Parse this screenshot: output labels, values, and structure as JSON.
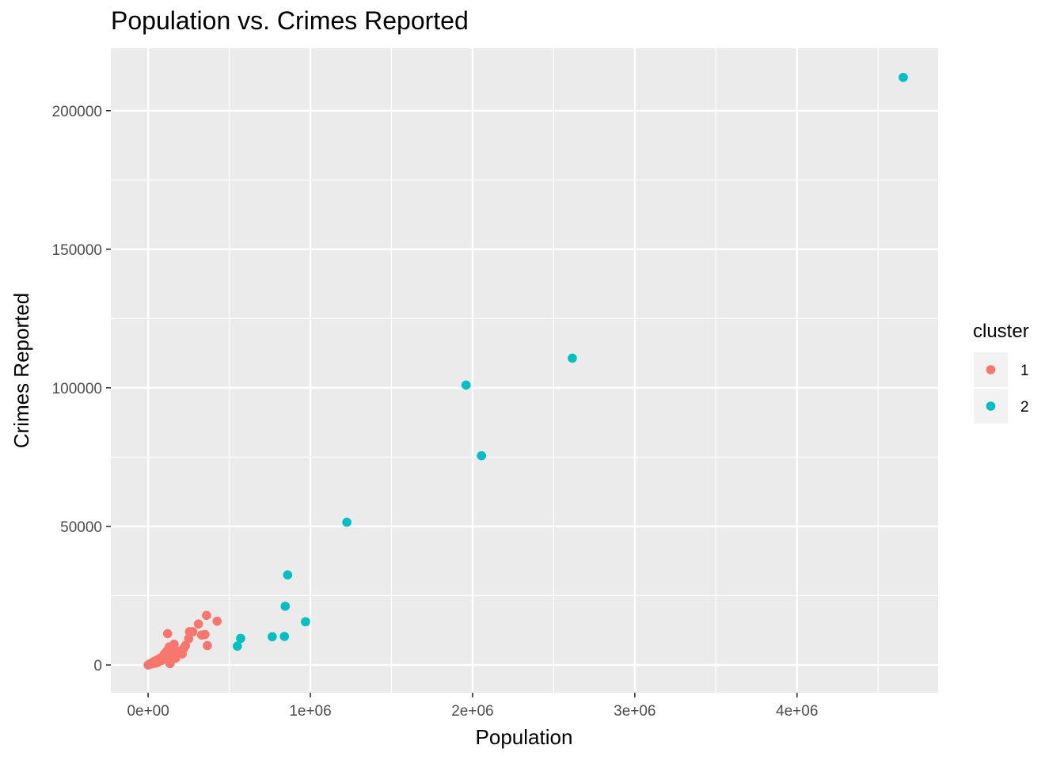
{
  "chart_data": {
    "type": "scatter",
    "title": "Population vs. Crimes Reported",
    "xlabel": "Population",
    "ylabel": "Crimes Reported",
    "xlim": [
      -230000,
      4870000
    ],
    "ylim": [
      -10000,
      222500
    ],
    "x_ticks": [
      {
        "value": 0,
        "label": "0e+00"
      },
      {
        "value": 1000000,
        "label": "1e+06"
      },
      {
        "value": 2000000,
        "label": "2e+06"
      },
      {
        "value": 3000000,
        "label": "3e+06"
      },
      {
        "value": 4000000,
        "label": "4e+06"
      }
    ],
    "y_ticks": [
      {
        "value": 0,
        "label": "0"
      },
      {
        "value": 50000,
        "label": "50000"
      },
      {
        "value": 100000,
        "label": "100000"
      },
      {
        "value": 150000,
        "label": "150000"
      },
      {
        "value": 200000,
        "label": "200000"
      }
    ],
    "grid": true,
    "legend": {
      "title": "cluster",
      "placement": "right"
    },
    "series": [
      {
        "name": "1",
        "color": "#F8766D",
        "points": [
          [
            0,
            0
          ],
          [
            5000,
            200
          ],
          [
            10000,
            400
          ],
          [
            15000,
            300
          ],
          [
            20000,
            600
          ],
          [
            25000,
            800
          ],
          [
            30000,
            500
          ],
          [
            35000,
            1200
          ],
          [
            40000,
            900
          ],
          [
            45000,
            1500
          ],
          [
            50000,
            700
          ],
          [
            55000,
            1800
          ],
          [
            60000,
            1000
          ],
          [
            65000,
            2000
          ],
          [
            70000,
            1400
          ],
          [
            75000,
            2500
          ],
          [
            80000,
            1600
          ],
          [
            85000,
            2200
          ],
          [
            90000,
            1900
          ],
          [
            95000,
            3000
          ],
          [
            100000,
            4000
          ],
          [
            105000,
            2600
          ],
          [
            110000,
            3300
          ],
          [
            115000,
            5000
          ],
          [
            120000,
            11300
          ],
          [
            125000,
            2800
          ],
          [
            130000,
            6500
          ],
          [
            135000,
            500
          ],
          [
            140000,
            4500
          ],
          [
            145000,
            1800
          ],
          [
            150000,
            3200
          ],
          [
            155000,
            5800
          ],
          [
            160000,
            7500
          ],
          [
            165000,
            4200
          ],
          [
            170000,
            2500
          ],
          [
            180000,
            5000
          ],
          [
            210000,
            4000
          ],
          [
            220000,
            6000
          ],
          [
            230000,
            7000
          ],
          [
            250000,
            9500
          ],
          [
            255000,
            12000
          ],
          [
            275000,
            12000
          ],
          [
            310000,
            14800
          ],
          [
            330000,
            10800
          ],
          [
            350000,
            11000
          ],
          [
            360000,
            17900
          ],
          [
            365000,
            7000
          ],
          [
            425000,
            15800
          ]
        ]
      },
      {
        "name": "2",
        "color": "#00BFC4",
        "points": [
          [
            550000,
            6800
          ],
          [
            570000,
            9600
          ],
          [
            765000,
            10200
          ],
          [
            840000,
            10300
          ],
          [
            845000,
            21200
          ],
          [
            860000,
            32500
          ],
          [
            970000,
            15600
          ],
          [
            1225000,
            51500
          ],
          [
            1960000,
            101000
          ],
          [
            2055000,
            75500
          ],
          [
            2615000,
            110700
          ],
          [
            4655000,
            212000
          ]
        ]
      }
    ]
  }
}
